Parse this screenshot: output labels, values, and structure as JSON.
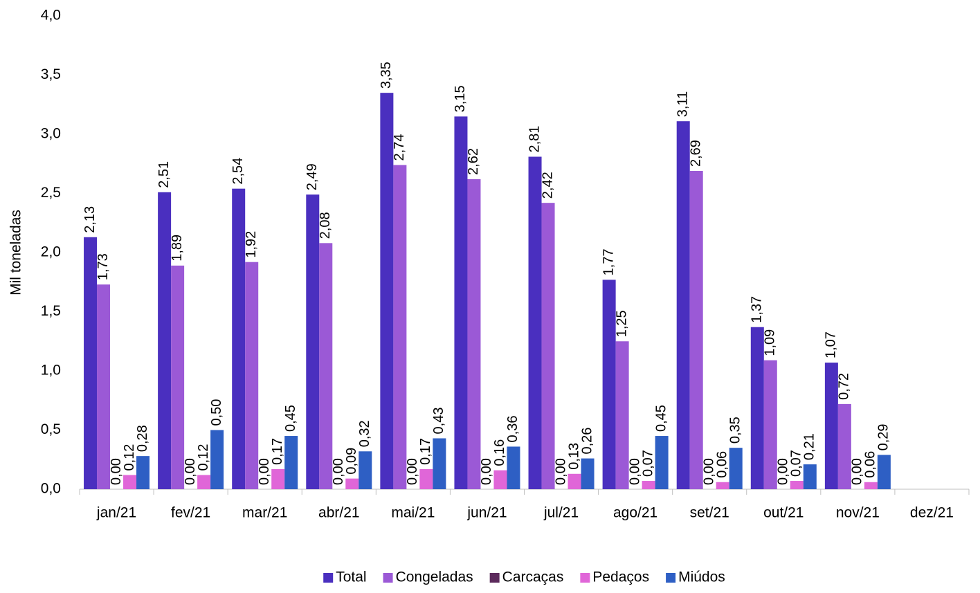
{
  "chart_data": {
    "type": "bar",
    "y_label": "Mil toneladas",
    "categories": [
      "jan/21",
      "fev/21",
      "mar/21",
      "abr/21",
      "mai/21",
      "jun/21",
      "jul/21",
      "ago/21",
      "set/21",
      "out/21",
      "nov/21",
      "dez/21"
    ],
    "series": [
      {
        "name": "Total",
        "color": "#4a2fbf",
        "values": [
          2.13,
          2.51,
          2.54,
          2.49,
          3.35,
          3.15,
          2.81,
          1.77,
          3.11,
          1.37,
          1.07,
          null
        ],
        "value_labels": [
          "2,13",
          "2,51",
          "2,54",
          "2,49",
          "3,35",
          "3,15",
          "2,81",
          "1,77",
          "3,11",
          "1,37",
          "1,07",
          null
        ]
      },
      {
        "name": "Congeladas",
        "color": "#9b59d6",
        "values": [
          1.73,
          1.89,
          1.92,
          2.08,
          2.74,
          2.62,
          2.42,
          1.25,
          2.69,
          1.09,
          0.72,
          null
        ],
        "value_labels": [
          "1,73",
          "1,89",
          "1,92",
          "2,08",
          "2,74",
          "2,62",
          "2,42",
          "1,25",
          "2,69",
          "1,09",
          "0,72",
          null
        ]
      },
      {
        "name": "Carcaças",
        "color": "#5c2a5c",
        "values": [
          0,
          0,
          0,
          0,
          0,
          0,
          0,
          0,
          0,
          0,
          0,
          null
        ],
        "value_labels": [
          "0,00",
          "0,00",
          "0,00",
          "0,00",
          "0,00",
          "0,00",
          "0,00",
          "0,00",
          "0,00",
          "0,00",
          "0,00",
          null
        ]
      },
      {
        "name": "Pedaços",
        "color": "#e066d8",
        "values": [
          0.12,
          0.12,
          0.17,
          0.09,
          0.17,
          0.16,
          0.13,
          0.07,
          0.06,
          0.07,
          0.06,
          null
        ],
        "value_labels": [
          "0,12",
          "0,12",
          "0,17",
          "0,09",
          "0,17",
          "0,16",
          "0,13",
          "0,07",
          "0,06",
          "0,07",
          "0,06",
          null
        ]
      },
      {
        "name": "Miúdos",
        "color": "#2e5fc4",
        "values": [
          0.28,
          0.5,
          0.45,
          0.32,
          0.43,
          0.36,
          0.26,
          0.45,
          0.35,
          0.21,
          0.29,
          null
        ],
        "value_labels": [
          "0,28",
          "0,50",
          "0,45",
          "0,32",
          "0,43",
          "0,36",
          "0,26",
          "0,45",
          "0,35",
          "0,21",
          "0,29",
          null
        ]
      }
    ],
    "ylim": [
      0,
      4
    ],
    "yticks": [
      {
        "value": 0,
        "label": "0,0"
      },
      {
        "value": 0.5,
        "label": "0,5"
      },
      {
        "value": 1,
        "label": "1,0"
      },
      {
        "value": 1.5,
        "label": "1,5"
      },
      {
        "value": 2,
        "label": "2,0"
      },
      {
        "value": 2.5,
        "label": "2,5"
      },
      {
        "value": 3,
        "label": "3,0"
      },
      {
        "value": 3.5,
        "label": "3,5"
      },
      {
        "value": 4,
        "label": "4,0"
      }
    ],
    "legend": "bottom"
  }
}
